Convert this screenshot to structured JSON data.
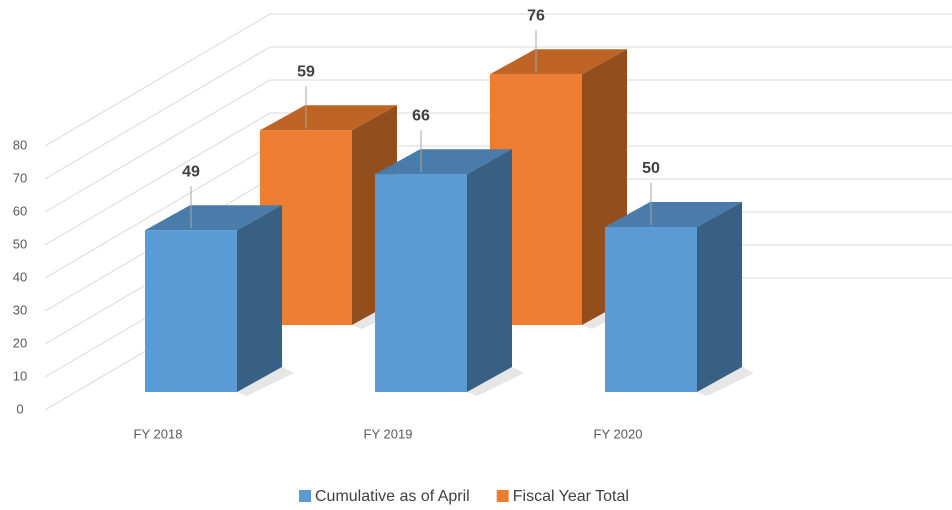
{
  "chart_data": {
    "type": "bar3d",
    "categories": [
      "FY 2018",
      "FY 2019",
      "FY 2020"
    ],
    "series": [
      {
        "name": "Cumulative as of April",
        "color": "#5b9bd5",
        "values": [
          49,
          66,
          50
        ]
      },
      {
        "name": "Fiscal Year Total",
        "color": "#ed7d31",
        "values": [
          59,
          76,
          null
        ]
      }
    ],
    "ylim": [
      0,
      80
    ],
    "yticks": [
      0,
      10,
      20,
      30,
      40,
      50,
      60,
      70,
      80
    ],
    "grid": true,
    "legend": "bottom"
  }
}
